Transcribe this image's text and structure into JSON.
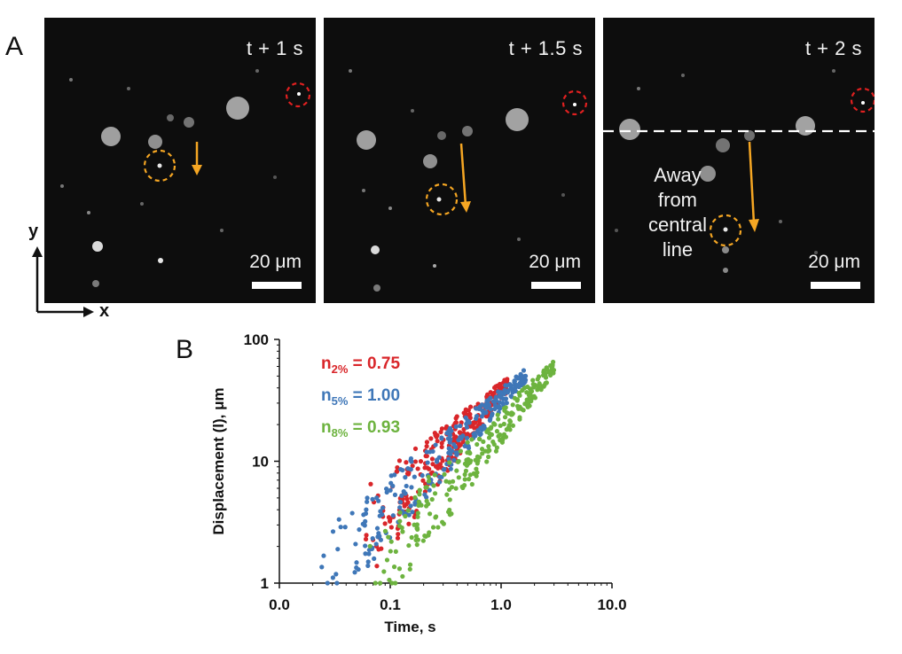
{
  "panel_a": {
    "letter": "A",
    "frames": [
      {
        "time": "t + 1 s",
        "scale": "20 μm"
      },
      {
        "time": "t + 1.5 s",
        "scale": "20 μm"
      },
      {
        "time": "t + 2 s",
        "scale": "20 μm",
        "annotation": [
          "Away",
          "from",
          "central",
          "line"
        ]
      }
    ],
    "axis_y": "y",
    "axis_x": "x",
    "colors": {
      "tracked": "#f5a623",
      "reference": "#e02020",
      "line": "#ffffff"
    }
  },
  "panel_b": {
    "letter": "B",
    "legend": [
      {
        "base": "n",
        "sub": "2%",
        "value": " = 0.75",
        "color": "#d9262a"
      },
      {
        "base": "n",
        "sub": "5%",
        "value": " = 1.00",
        "color": "#3f77b8"
      },
      {
        "base": "n",
        "sub": "8%",
        "value": " = 0.93",
        "color": "#6db33f"
      }
    ]
  },
  "chart_data": {
    "type": "scatter",
    "xscale": "log",
    "yscale": "log",
    "xlim": [
      0.01,
      10
    ],
    "ylim": [
      1,
      100
    ],
    "xticks": [
      "0.0",
      "0.1",
      "1.0",
      "10.0"
    ],
    "yticks": [
      "1",
      "10",
      "100"
    ],
    "xlabel": "Time, s",
    "ylabel": "Displacement (l), μm",
    "series": [
      {
        "name": "2%",
        "exponent": 0.75,
        "color": "#d9262a",
        "tmin": 0.06,
        "tmax": 1.2,
        "ymin_at_tmin": 2.5,
        "ymax_at_tmax": 45
      },
      {
        "name": "5%",
        "exponent": 1.0,
        "color": "#3f77b8",
        "tmin": 0.02,
        "tmax": 1.7,
        "ymin_at_tmin": 1.0,
        "ymax_at_tmax": 52
      },
      {
        "name": "8%",
        "exponent": 0.93,
        "color": "#6db33f",
        "tmin": 0.06,
        "tmax": 3.0,
        "ymin_at_tmin": 1.0,
        "ymax_at_tmax": 60
      }
    ]
  }
}
